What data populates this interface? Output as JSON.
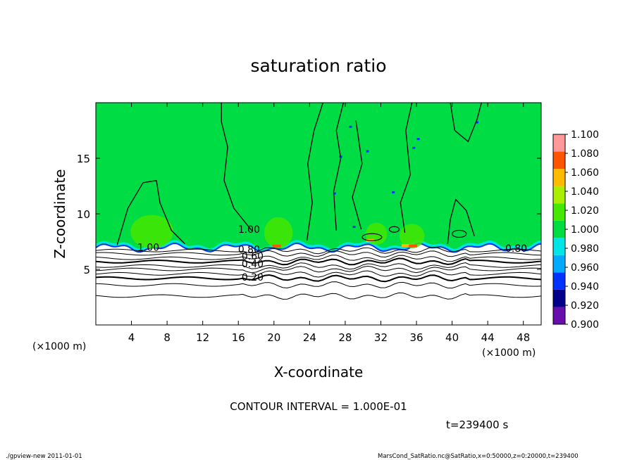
{
  "chart_data": {
    "type": "heatmap",
    "title": "saturation ratio",
    "xlabel": "X-coordinate",
    "ylabel": "Z-coordinate",
    "x_unit_left": "(×1000 m)",
    "x_unit_right": "(×1000 m)",
    "xlim": [
      0,
      50
    ],
    "ylim": [
      0,
      20
    ],
    "x_ticks": [
      4,
      8,
      12,
      16,
      20,
      24,
      28,
      32,
      36,
      40,
      44,
      48
    ],
    "y_ticks": [
      5,
      10,
      15
    ],
    "colorbar": {
      "levels": [
        0.9,
        0.92,
        0.94,
        0.96,
        0.98,
        1.0,
        1.02,
        1.04,
        1.06,
        1.08,
        1.1
      ],
      "labels": [
        "0.900",
        "0.920",
        "0.940",
        "0.960",
        "0.980",
        "1.000",
        "1.020",
        "1.040",
        "1.060",
        "1.080",
        "1.100"
      ],
      "colors": [
        "#6a0dad",
        "#00008b",
        "#0033ff",
        "#00aaff",
        "#00e5e5",
        "#00dd44",
        "#44e800",
        "#aaee00",
        "#ffbb00",
        "#ff5500",
        "#ff9999"
      ]
    },
    "contour_labels": [
      {
        "text": "1.00",
        "x": 5.9,
        "z": 7.0
      },
      {
        "text": "1.00",
        "x": 17.2,
        "z": 8.6
      },
      {
        "text": "0.80",
        "x": 17.2,
        "z": 6.8
      },
      {
        "text": "0.60",
        "x": 17.6,
        "z": 6.2
      },
      {
        "text": "0.40",
        "x": 17.6,
        "z": 5.5
      },
      {
        "text": "0.20",
        "x": 17.6,
        "z": 4.3
      },
      {
        "text": "0.80",
        "x": 47.2,
        "z": 6.9
      }
    ],
    "contour_interval_text": "CONTOUR INTERVAL = 1.000E-01",
    "time_text": "t=239400 s",
    "background_color": "#00dd44"
  },
  "footer": {
    "left": "./gpview-new   2011-01-01",
    "right": "MarsCond_SatRatio.nc@SatRatio,x=0:50000,z=0:20000,t=239400"
  }
}
